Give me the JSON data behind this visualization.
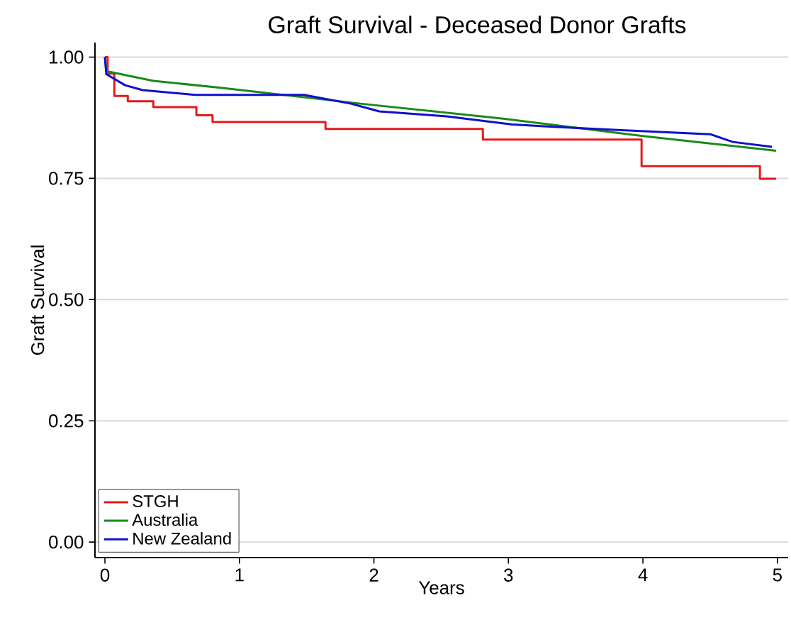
{
  "chart_data": {
    "type": "line",
    "title": "Graft Survival - Deceased Donor Grafts",
    "xlabel": "Years",
    "ylabel": "Graft Survival",
    "xlim": [
      -0.074,
      5.08
    ],
    "ylim": [
      -0.032,
      1.03
    ],
    "xticks": [
      0,
      1,
      2,
      3,
      4,
      5
    ],
    "yticks": [
      {
        "value": 0,
        "label": "0.00"
      },
      {
        "value": 0.25,
        "label": "0.25"
      },
      {
        "value": 0.5,
        "label": "0.50"
      },
      {
        "value": 0.75,
        "label": "0.75"
      },
      {
        "value": 1,
        "label": "1.00"
      }
    ],
    "grid": "y",
    "legend": "bottom left",
    "series": [
      {
        "name": "STGH",
        "type": "step",
        "color": "#e41a1c",
        "x": [
          0,
          0.02,
          0.07,
          0.17,
          0.36,
          0.68,
          0.8,
          1.64,
          2.81,
          3.99,
          4.87,
          4.99
        ],
        "values": [
          1.0,
          0.966,
          0.92,
          0.909,
          0.897,
          0.88,
          0.866,
          0.852,
          0.83,
          0.775,
          0.749,
          0.749
        ]
      },
      {
        "name": "Australia",
        "color": "#1a8a1a",
        "x": [
          0,
          0.01,
          0.36,
          0.85,
          1.9,
          2.96,
          4.01,
          4.99
        ],
        "values": [
          1.0,
          0.971,
          0.951,
          0.937,
          0.904,
          0.873,
          0.837,
          0.807
        ]
      },
      {
        "name": "New Zealand",
        "color": "#1010cc",
        "x": [
          0,
          0.01,
          0.15,
          0.28,
          0.67,
          1.48,
          1.83,
          2.04,
          2.54,
          3.03,
          3.49,
          3.87,
          4.5,
          4.67,
          4.96
        ],
        "values": [
          1.0,
          0.965,
          0.942,
          0.932,
          0.922,
          0.922,
          0.904,
          0.888,
          0.878,
          0.861,
          0.854,
          0.849,
          0.841,
          0.825,
          0.815
        ]
      }
    ]
  }
}
